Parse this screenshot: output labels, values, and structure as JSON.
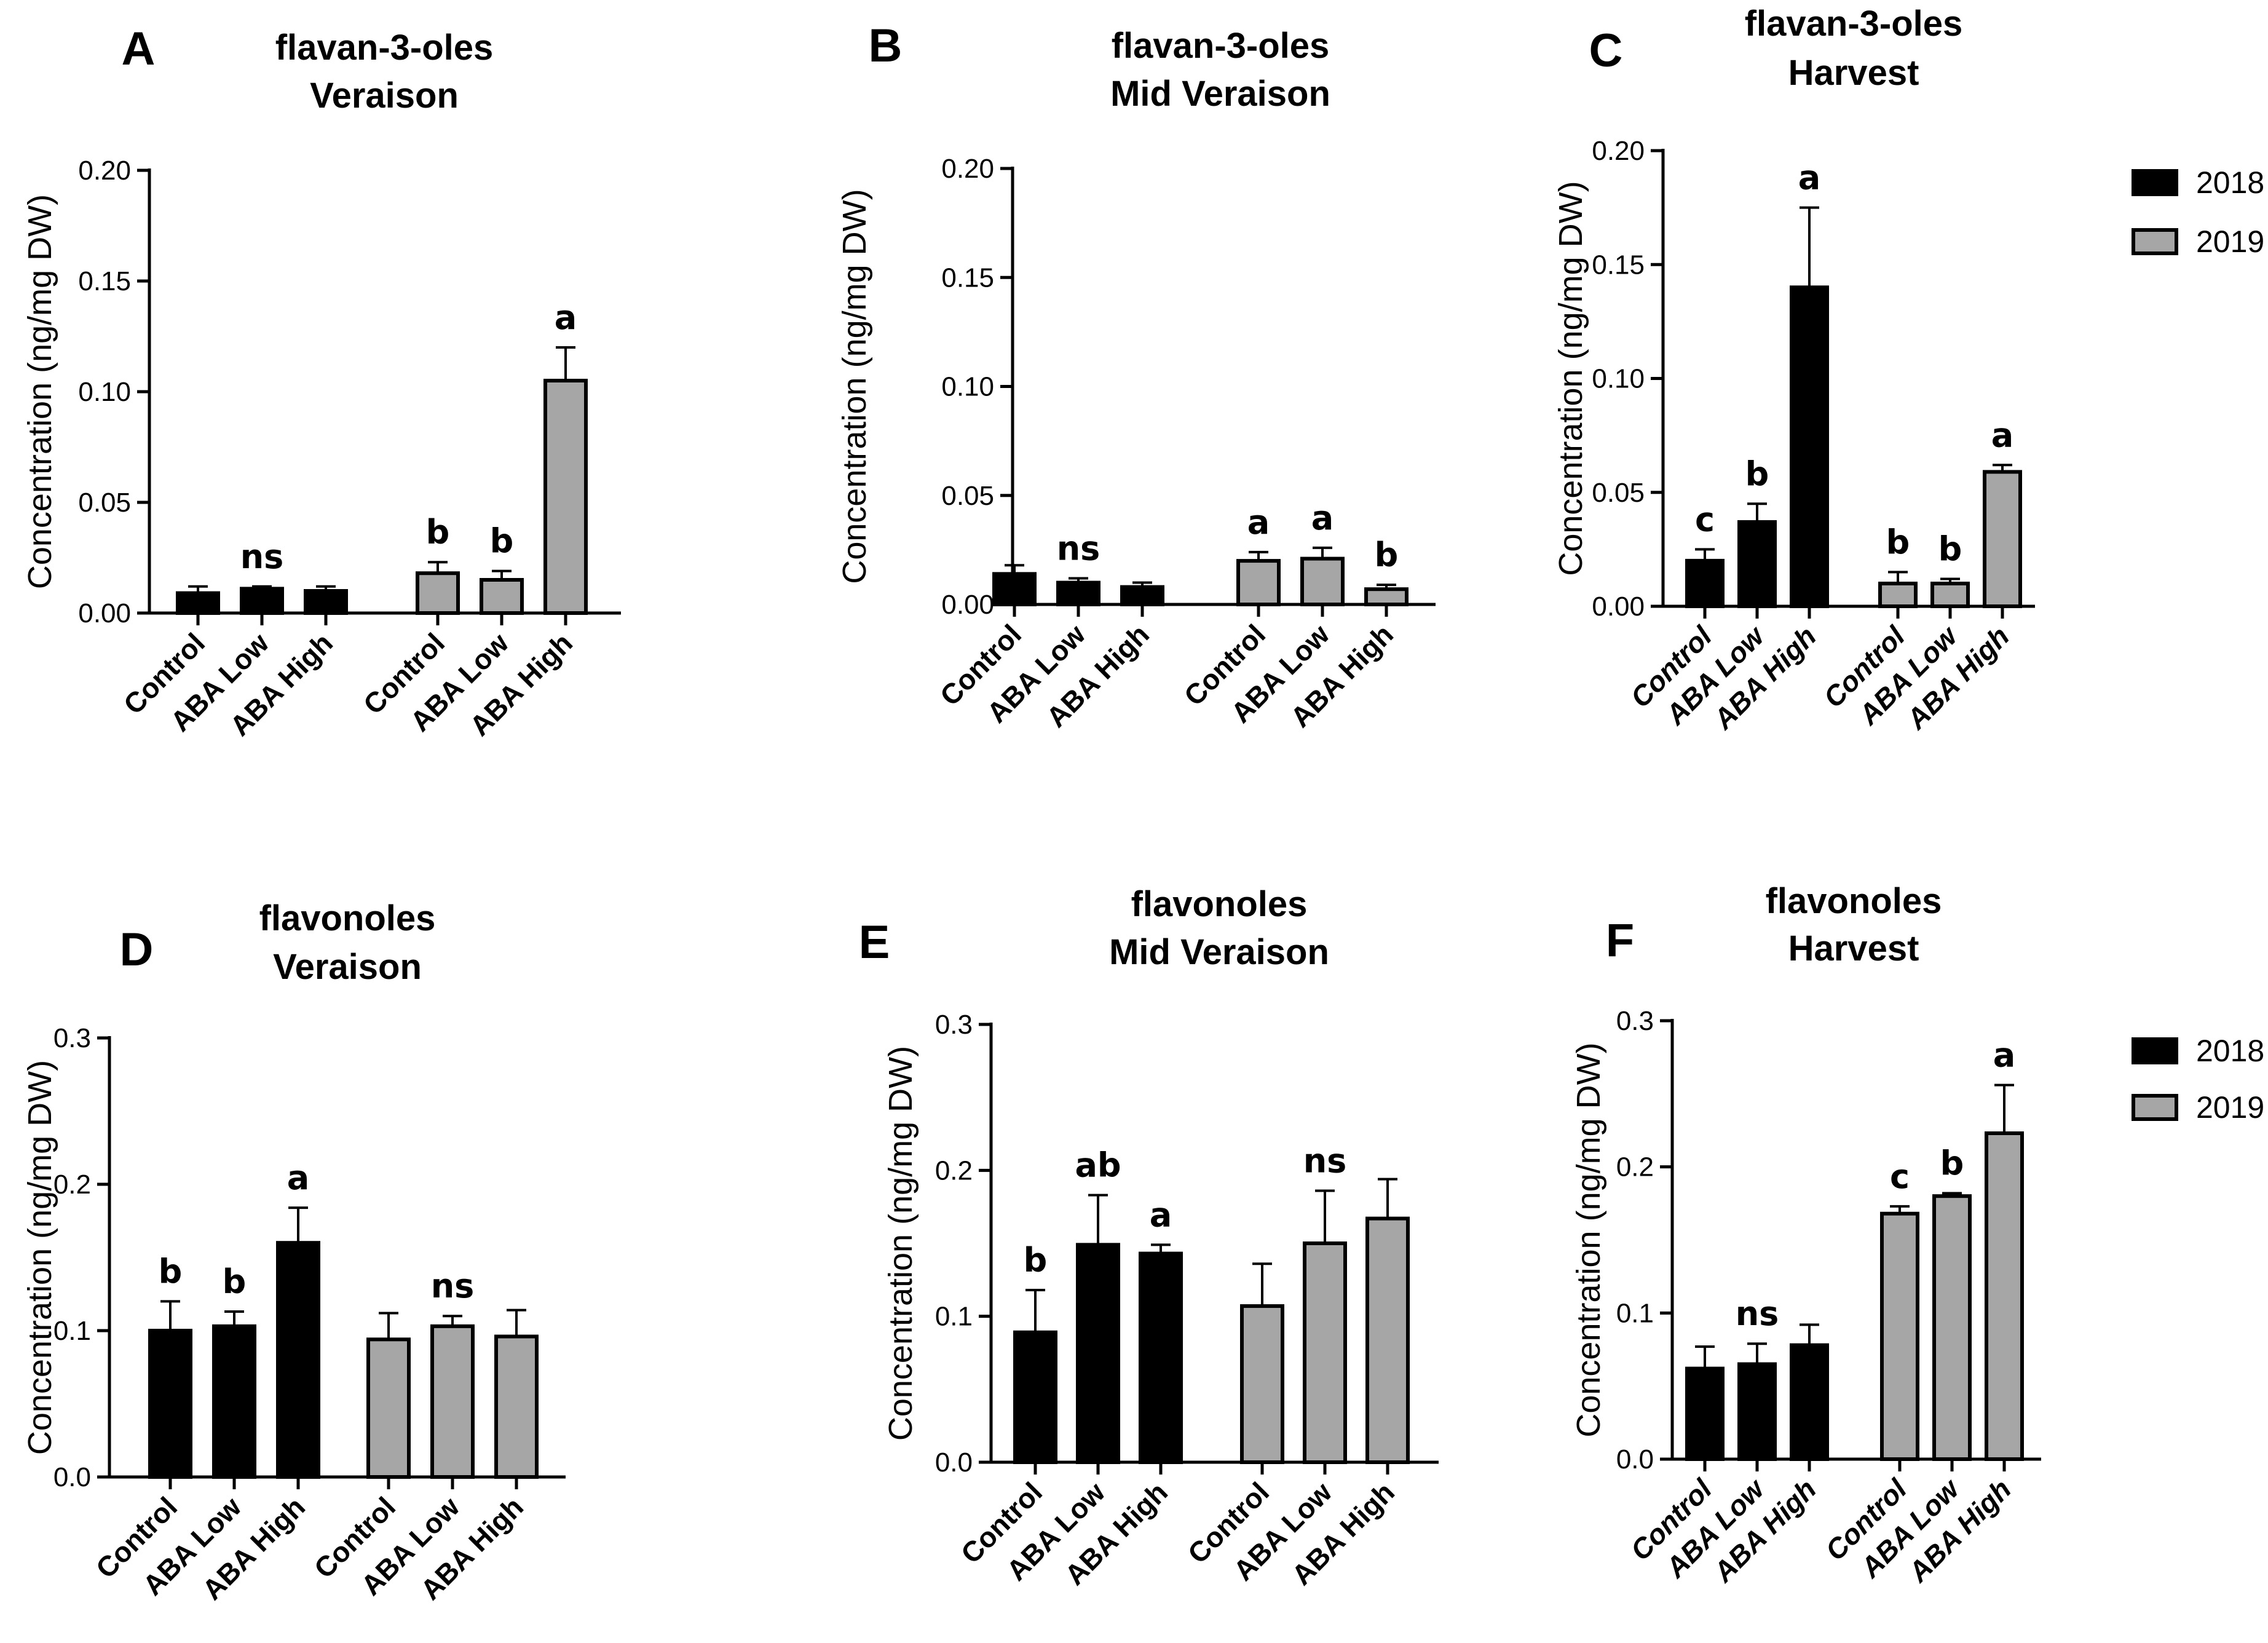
{
  "colors": {
    "2018": "#000000",
    "2019": "#a6a6a6"
  },
  "legend": {
    "series_2018": "2018",
    "series_2019": "2019"
  },
  "chart_data": [
    {
      "type": "bar",
      "panel": "A",
      "title": [
        "flavan-3-oles",
        "Veraison"
      ],
      "ylabel": "Concentration (ng/mg DW)",
      "ylim": [
        0,
        0.2
      ],
      "yticks": [
        "0.00",
        "0.05",
        "0.10",
        "0.15",
        "0.20"
      ],
      "categories": [
        "Control",
        "ABA Low",
        "ABA High"
      ],
      "italic_categories": false,
      "series": [
        {
          "name": "2018",
          "values": [
            0.009,
            0.011,
            0.01
          ],
          "errors": [
            0.003,
            0.001,
            0.002
          ],
          "letters": [
            "",
            "ns",
            ""
          ]
        },
        {
          "name": "2019",
          "values": [
            0.018,
            0.015,
            0.105
          ],
          "errors": [
            0.005,
            0.004,
            0.015
          ],
          "letters": [
            "b",
            "b",
            "a"
          ]
        }
      ]
    },
    {
      "type": "bar",
      "panel": "B",
      "title": [
        "flavan-3-oles",
        "Mid Veraison"
      ],
      "ylabel": "Concentration (ng/mg DW)",
      "ylim": [
        0,
        0.2
      ],
      "yticks": [
        "0.00",
        "0.05",
        "0.10",
        "0.15",
        "0.20"
      ],
      "categories": [
        "Control",
        "ABA Low",
        "ABA High"
      ],
      "italic_categories": false,
      "series": [
        {
          "name": "2018",
          "values": [
            0.014,
            0.01,
            0.008
          ],
          "errors": [
            0.004,
            0.002,
            0.002
          ],
          "letters": [
            "",
            "ns",
            ""
          ]
        },
        {
          "name": "2019",
          "values": [
            0.02,
            0.021,
            0.007
          ],
          "errors": [
            0.004,
            0.005,
            0.002
          ],
          "letters": [
            "a",
            "a",
            "b"
          ]
        }
      ]
    },
    {
      "type": "bar",
      "panel": "C",
      "title": [
        "flavan-3-oles",
        "Harvest"
      ],
      "ylabel": "Concentration (ng/mg DW)",
      "ylim": [
        0,
        0.2
      ],
      "yticks": [
        "0.00",
        "0.05",
        "0.10",
        "0.15",
        "0.20"
      ],
      "categories": [
        "Control",
        "ABA Low",
        "ABA High"
      ],
      "italic_categories": true,
      "series": [
        {
          "name": "2018",
          "values": [
            0.02,
            0.037,
            0.14
          ],
          "errors": [
            0.005,
            0.008,
            0.035
          ],
          "letters": [
            "c",
            "b",
            "a"
          ]
        },
        {
          "name": "2019",
          "values": [
            0.01,
            0.01,
            0.059
          ],
          "errors": [
            0.005,
            0.002,
            0.003
          ],
          "letters": [
            "b",
            "b",
            "a"
          ]
        }
      ]
    },
    {
      "type": "bar",
      "panel": "D",
      "title": [
        "flavonoles",
        "Veraison"
      ],
      "ylabel": "Concentration (ng/mg DW)",
      "ylim": [
        0,
        0.3
      ],
      "yticks": [
        "0.0",
        "0.1",
        "0.2",
        "0.3"
      ],
      "categories": [
        "Control",
        "ABA Low",
        "ABA High"
      ],
      "italic_categories": false,
      "series": [
        {
          "name": "2018",
          "values": [
            0.1,
            0.103,
            0.16
          ],
          "errors": [
            0.02,
            0.01,
            0.024
          ],
          "letters": [
            "b",
            "b",
            "a"
          ]
        },
        {
          "name": "2019",
          "values": [
            0.094,
            0.103,
            0.096
          ],
          "errors": [
            0.018,
            0.007,
            0.018
          ],
          "letters": [
            "",
            "ns",
            ""
          ]
        }
      ]
    },
    {
      "type": "bar",
      "panel": "E",
      "title": [
        "flavonoles",
        "Mid Veraison"
      ],
      "ylabel": "Concentration (ng/mg DW)",
      "ylim": [
        0,
        0.3
      ],
      "yticks": [
        "0.0",
        "0.1",
        "0.2",
        "0.3"
      ],
      "categories": [
        "Control",
        "ABA Low",
        "ABA High"
      ],
      "italic_categories": false,
      "series": [
        {
          "name": "2018",
          "values": [
            0.089,
            0.149,
            0.143
          ],
          "errors": [
            0.029,
            0.034,
            0.006
          ],
          "letters": [
            "b",
            "ab",
            "a"
          ]
        },
        {
          "name": "2019",
          "values": [
            0.107,
            0.15,
            0.167
          ],
          "errors": [
            0.029,
            0.036,
            0.027
          ],
          "letters": [
            "",
            "ns",
            ""
          ]
        }
      ]
    },
    {
      "type": "bar",
      "panel": "F",
      "title": [
        "flavonoles",
        "Harvest"
      ],
      "ylabel": "Concentration (ng/mg DW)",
      "ylim": [
        0,
        0.3
      ],
      "yticks": [
        "0.0",
        "0.1",
        "0.2",
        "0.3"
      ],
      "categories": [
        "Control",
        "ABA Low",
        "ABA High"
      ],
      "italic_categories": true,
      "series": [
        {
          "name": "2018",
          "values": [
            0.062,
            0.065,
            0.078
          ],
          "errors": [
            0.015,
            0.014,
            0.014
          ],
          "letters": [
            "",
            "ns",
            ""
          ]
        },
        {
          "name": "2019",
          "values": [
            0.168,
            0.18,
            0.223
          ],
          "errors": [
            0.005,
            0.002,
            0.033
          ],
          "letters": [
            "c",
            "b",
            "a"
          ]
        }
      ]
    }
  ]
}
